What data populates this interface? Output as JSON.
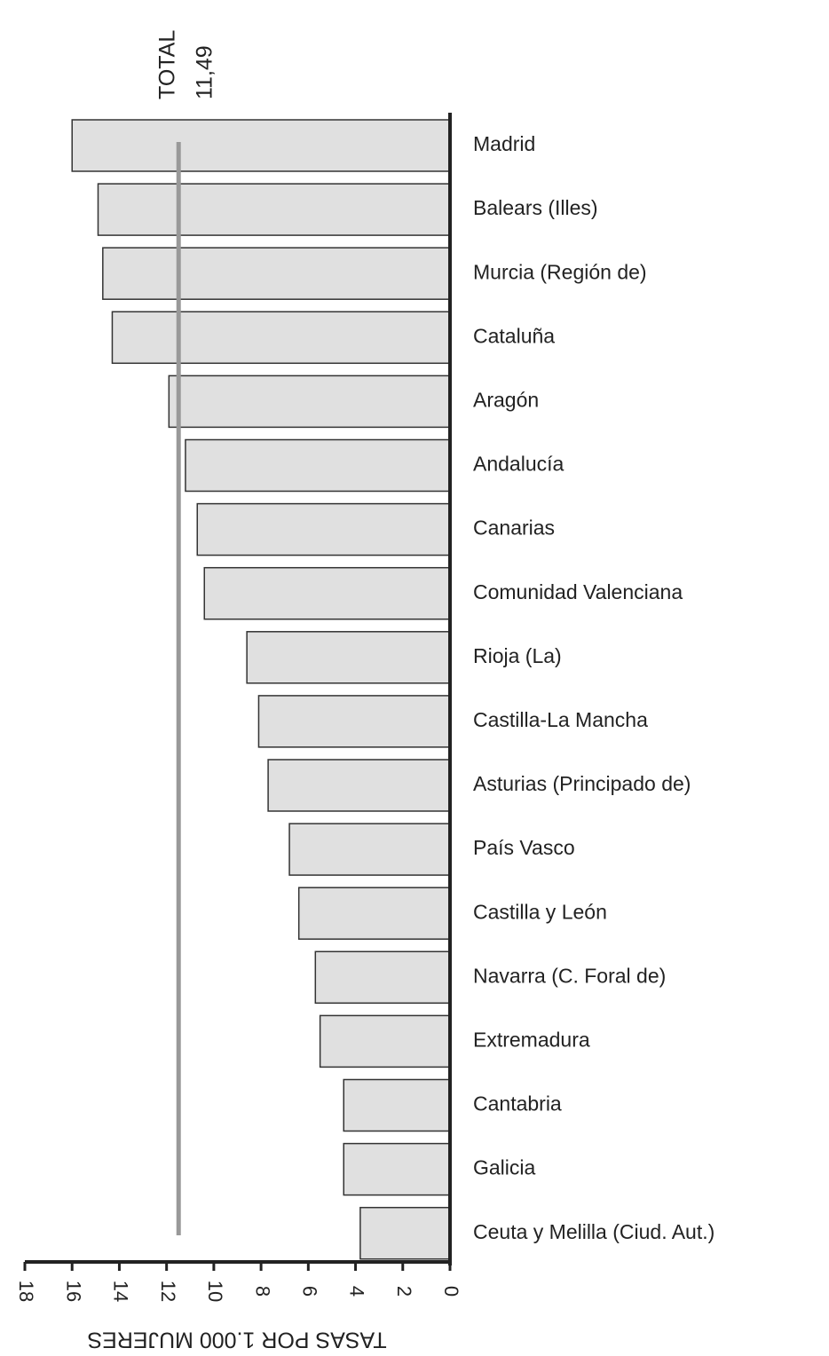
{
  "chart_data": {
    "type": "bar",
    "orientation": "horizontal",
    "reversed_x": true,
    "categories": [
      "Madrid",
      "Balears (Illes)",
      "Murcia (Región de)",
      "Cataluña",
      "Aragón",
      "Andalucía",
      "Canarias",
      "Comunidad Valenciana",
      "Rioja (La)",
      "Castilla-La Mancha",
      "Asturias (Principado de)",
      "País Vasco",
      "Castilla y León",
      "Navarra (C. Foral de)",
      "Extremadura",
      "Cantabria",
      "Galicia",
      "Ceuta y Melilla (Ciud. Aut.)"
    ],
    "values": [
      16.0,
      14.9,
      14.7,
      14.3,
      11.9,
      11.2,
      10.7,
      10.4,
      8.6,
      8.1,
      7.7,
      6.8,
      6.4,
      5.7,
      5.5,
      4.5,
      4.5,
      3.8
    ],
    "color": "#e0e0e0",
    "xlim": [
      0,
      18
    ],
    "xticks": [
      0,
      2,
      4,
      6,
      8,
      10,
      12,
      14,
      16,
      18
    ],
    "xlabel": "TASAS POR 1.000 MUJERES",
    "reference_line": {
      "name": "TOTAL",
      "value": 11.49,
      "label": "11,49",
      "color": "#999999"
    }
  }
}
